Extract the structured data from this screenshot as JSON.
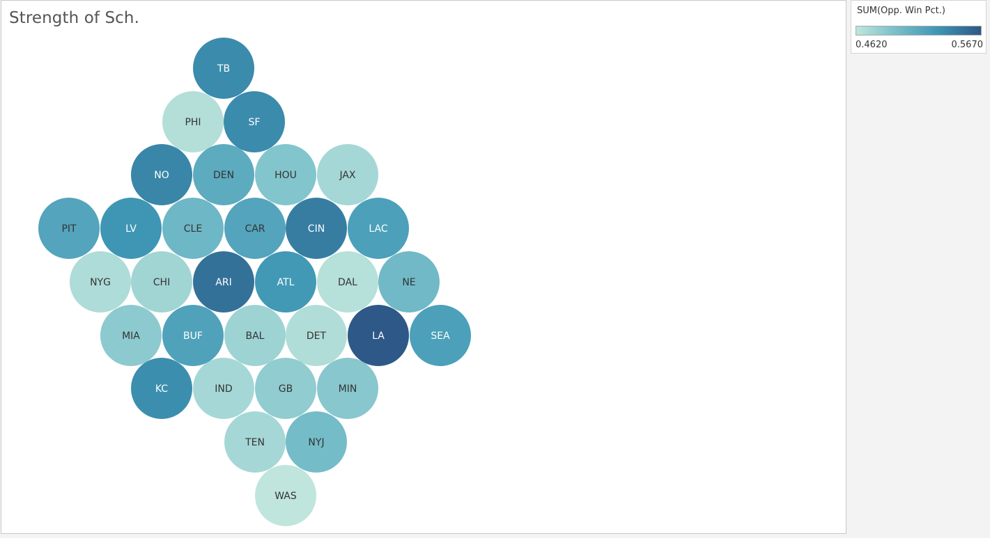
{
  "title": "Strength of Sch.",
  "legend": {
    "title": "SUM(Opp. Win Pct.)",
    "min_label": "0.4620",
    "max_label": "0.5670",
    "min_color": "#bfe5dc",
    "max_color": "#2d5887"
  },
  "chart_data": {
    "type": "packed-bubble",
    "measure": "SUM(Opp. Win Pct.)",
    "range": [
      0.462,
      0.567
    ],
    "label_dark_text": "#333333",
    "label_light_text": "#ffffff",
    "teams": [
      {
        "team": "TB",
        "value": 0.537
      },
      {
        "team": "PHI",
        "value": 0.467
      },
      {
        "team": "SF",
        "value": 0.537
      },
      {
        "team": "NO",
        "value": 0.54
      },
      {
        "team": "DEN",
        "value": 0.512
      },
      {
        "team": "HOU",
        "value": 0.49
      },
      {
        "team": "JAX",
        "value": 0.474
      },
      {
        "team": "PIT",
        "value": 0.518
      },
      {
        "team": "LV",
        "value": 0.53
      },
      {
        "team": "CLE",
        "value": 0.502
      },
      {
        "team": "CAR",
        "value": 0.518
      },
      {
        "team": "CIN",
        "value": 0.545
      },
      {
        "team": "LAC",
        "value": 0.522
      },
      {
        "team": "NYG",
        "value": 0.47
      },
      {
        "team": "CHI",
        "value": 0.476
      },
      {
        "team": "ARI",
        "value": 0.552
      },
      {
        "team": "ATL",
        "value": 0.528
      },
      {
        "team": "DAL",
        "value": 0.466
      },
      {
        "team": "NE",
        "value": 0.5
      },
      {
        "team": "MIA",
        "value": 0.486
      },
      {
        "team": "BUF",
        "value": 0.52
      },
      {
        "team": "BAL",
        "value": 0.478
      },
      {
        "team": "DET",
        "value": 0.469
      },
      {
        "team": "LA",
        "value": 0.567
      },
      {
        "team": "SEA",
        "value": 0.522
      },
      {
        "team": "KC",
        "value": 0.535
      },
      {
        "team": "IND",
        "value": 0.474
      },
      {
        "team": "GB",
        "value": 0.484
      },
      {
        "team": "MIN",
        "value": 0.488
      },
      {
        "team": "TEN",
        "value": 0.474
      },
      {
        "team": "NYJ",
        "value": 0.498
      },
      {
        "team": "WAS",
        "value": 0.462
      }
    ]
  }
}
